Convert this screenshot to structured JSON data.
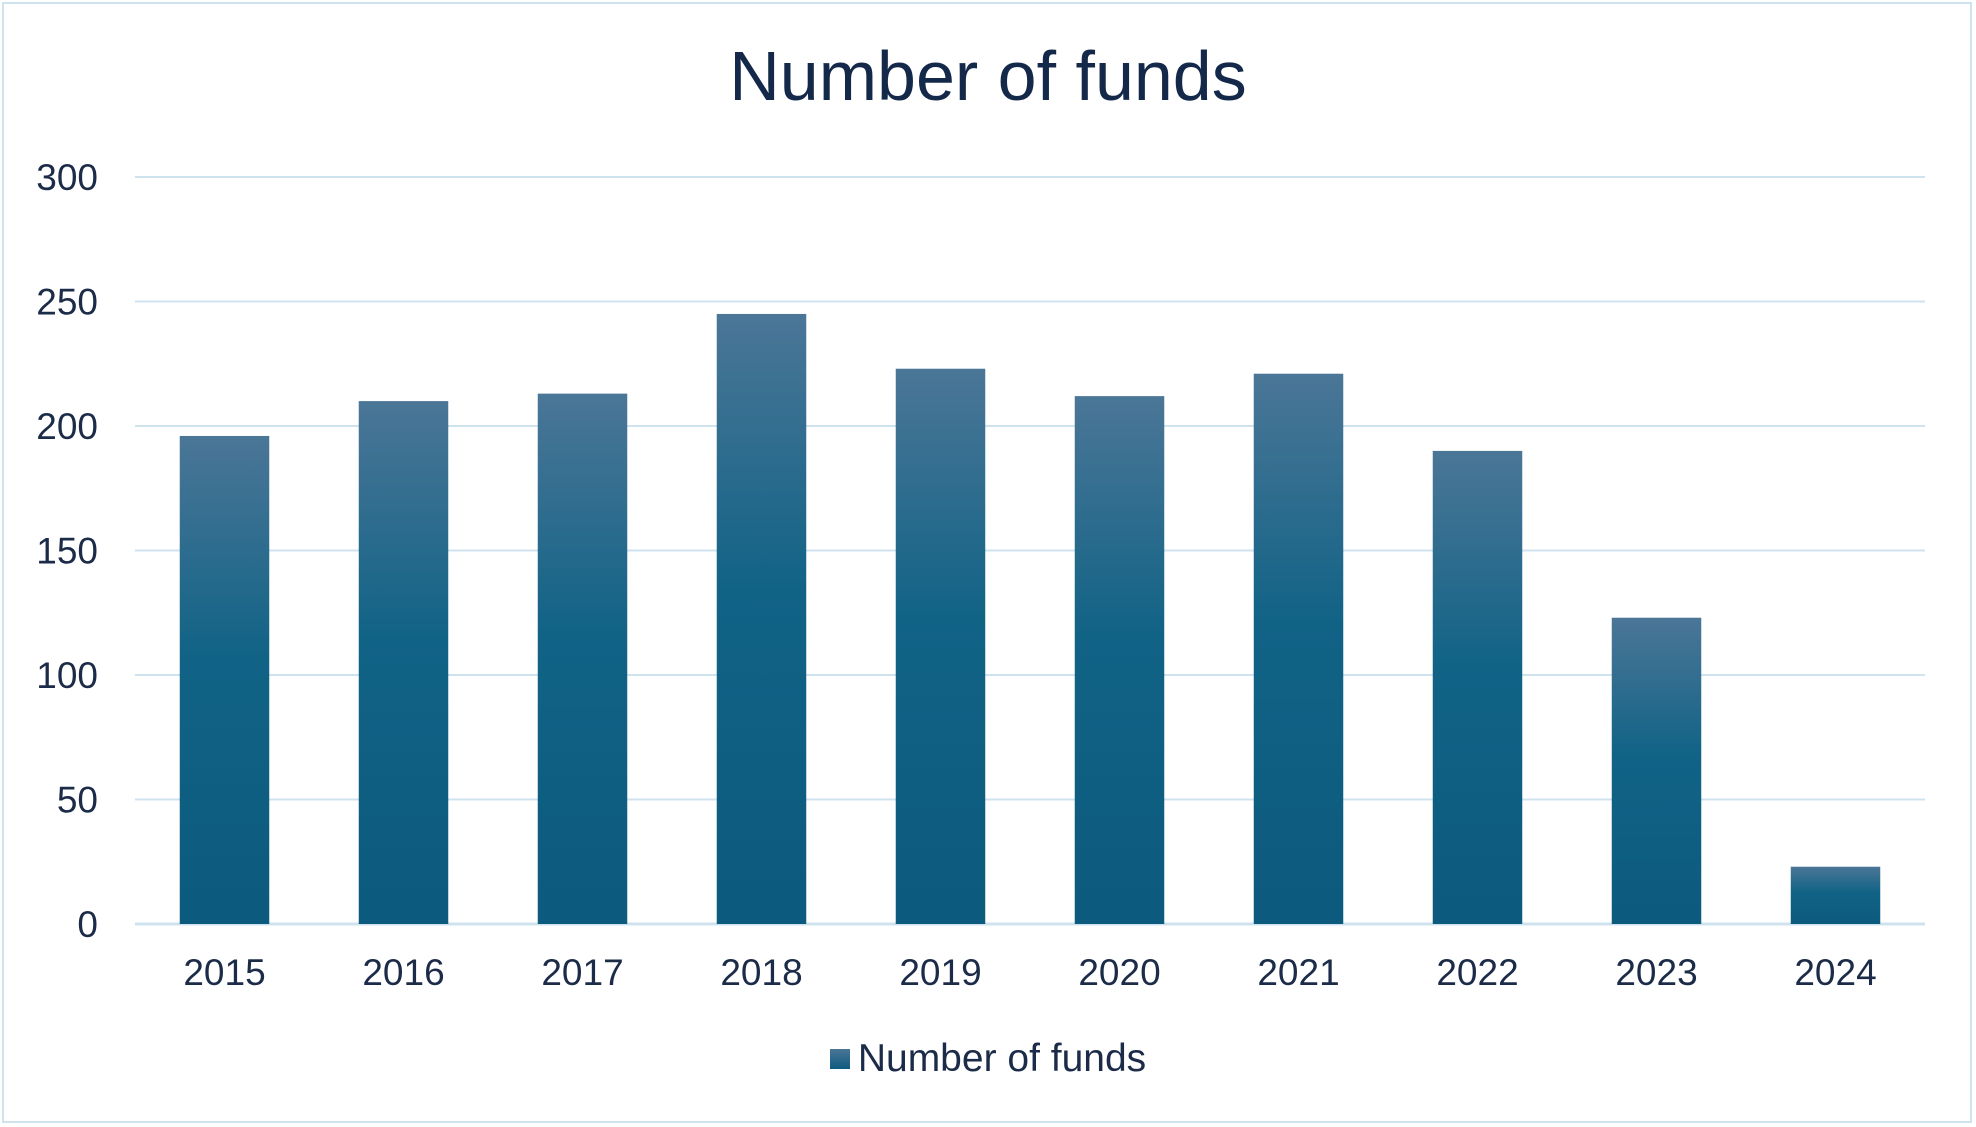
{
  "chart_data": {
    "type": "bar",
    "title": "Number of funds",
    "categories": [
      "2015",
      "2016",
      "2017",
      "2018",
      "2019",
      "2020",
      "2021",
      "2022",
      "2023",
      "2024"
    ],
    "series": [
      {
        "name": "Number of funds",
        "values": [
          196,
          210,
          213,
          245,
          223,
          212,
          221,
          190,
          123,
          23
        ]
      }
    ],
    "ylim": [
      0,
      300
    ],
    "yticks": [
      "0",
      "50",
      "100",
      "150",
      "200",
      "250",
      "300"
    ],
    "xlabel": "",
    "ylabel": "",
    "grid": true,
    "legend_position": "bottom",
    "colors": {
      "bar_top": "#4b7697",
      "bar_bottom": "#0e5b80",
      "gridline": "#cfe3ef",
      "text": "#1b2b48"
    }
  }
}
